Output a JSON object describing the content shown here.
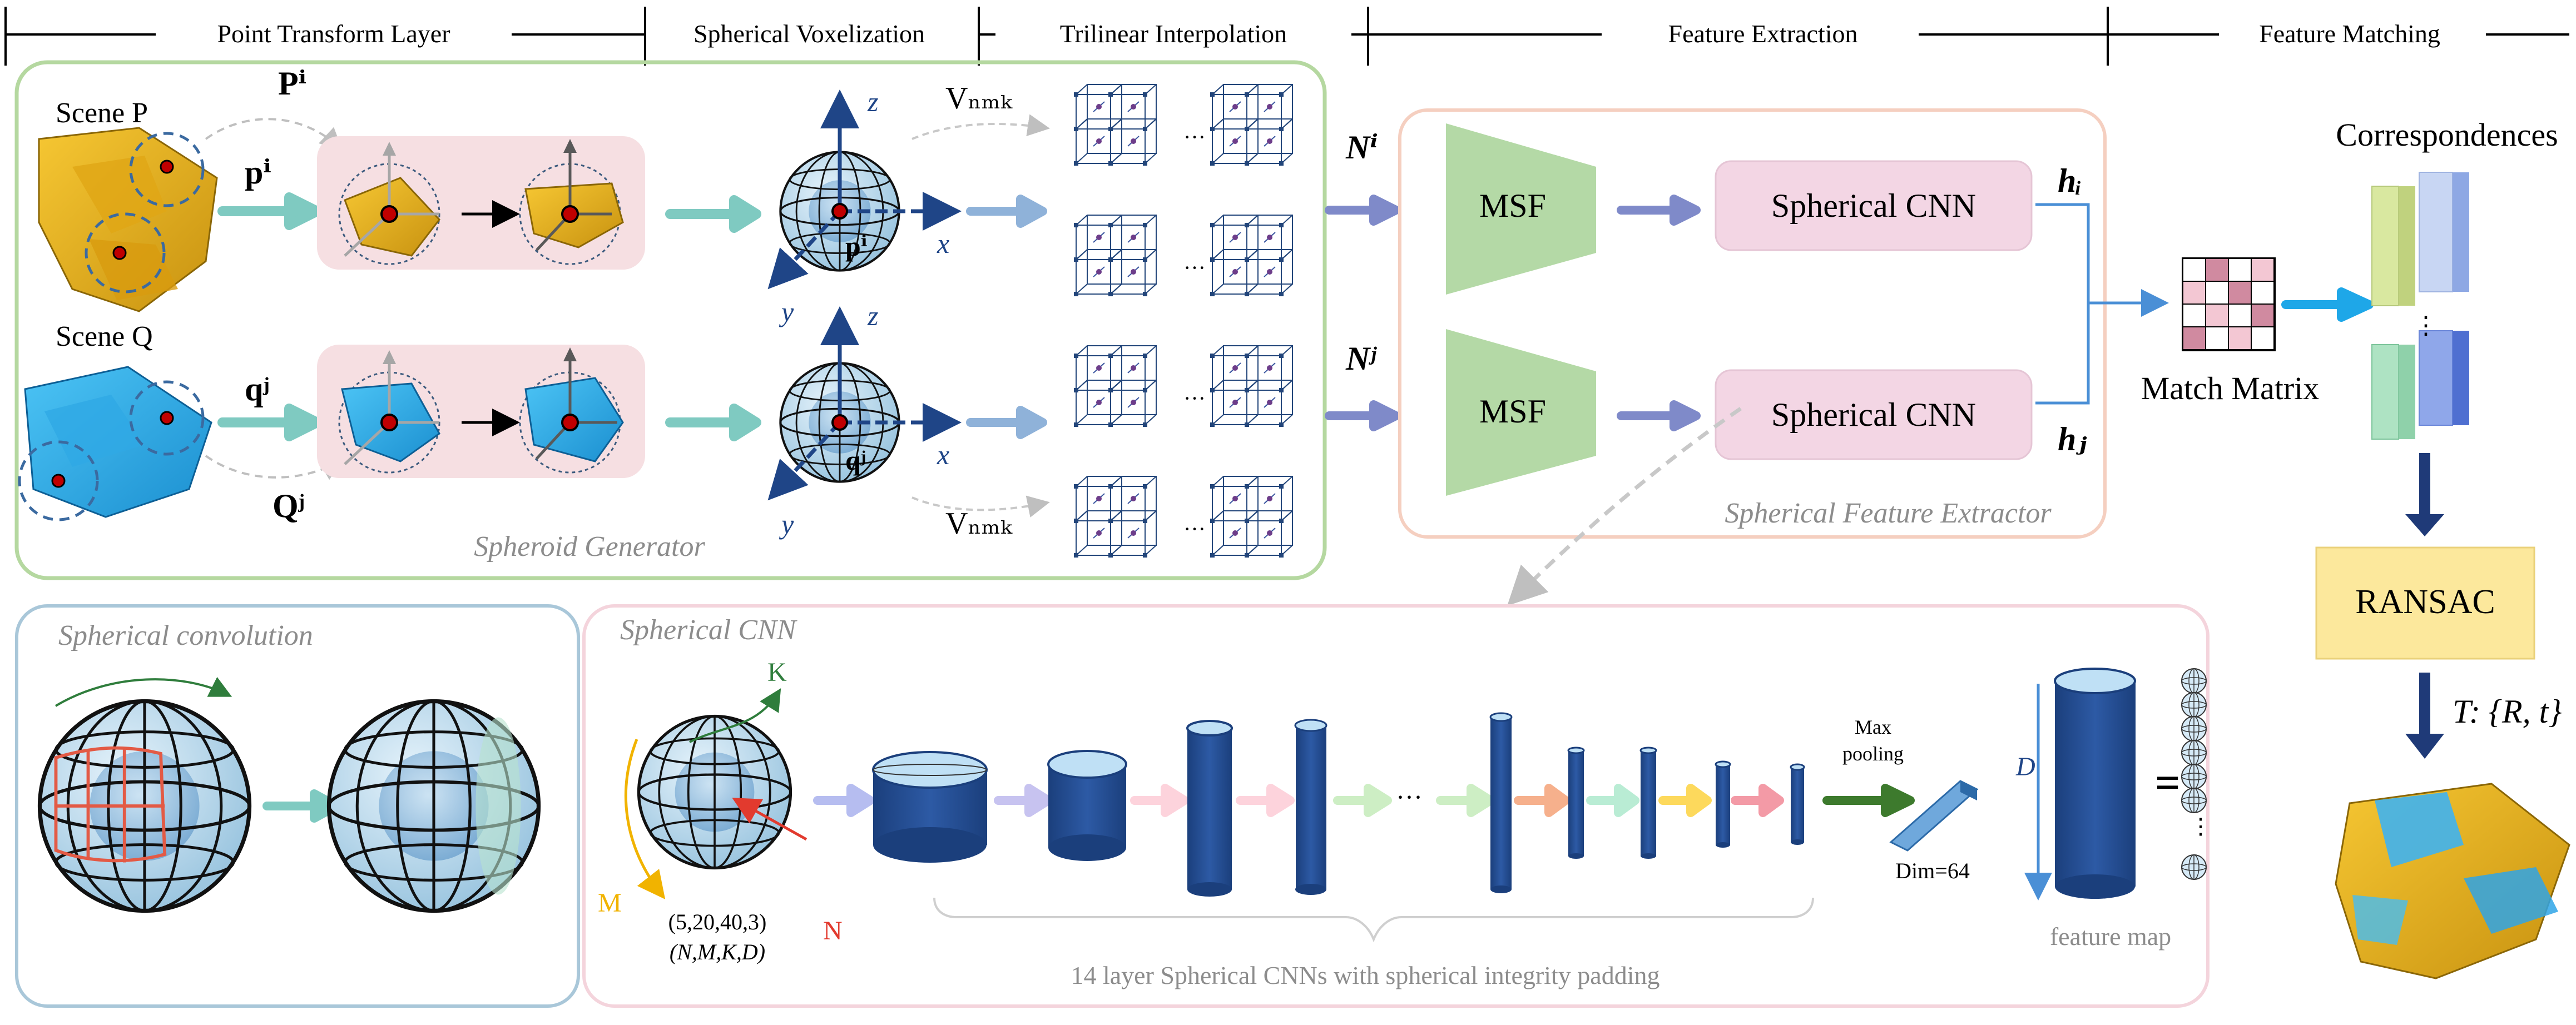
{
  "header": {
    "sections": [
      {
        "label": "Point Transform Layer"
      },
      {
        "label": "Spherical Voxelization"
      },
      {
        "label": "Trilinear Interpolation"
      },
      {
        "label": "Feature Extraction"
      },
      {
        "label": "Feature Matching"
      }
    ]
  },
  "generator": {
    "caption": "Spheroid Generator",
    "scene_p": "Scene P",
    "scene_q": "Scene Q",
    "p_sup_i": "Pⁱ",
    "pi": "pⁱ",
    "q_sup_j": "Qʲ",
    "qj": "qʲ",
    "axis_z": "z",
    "axis_x": "x",
    "axis_y": "y",
    "center_p": "pⁱ",
    "center_q": "qʲ",
    "vnmk_top": "Vₙₘₖ",
    "vnmk_bottom": "Vₙₘₖ"
  },
  "extractor": {
    "caption": "Spherical Feature Extractor",
    "ni": "Nⁱ",
    "nj": "Nʲ",
    "msf_label": "MSF",
    "cnn_label": "Spherical CNN",
    "hi": "hᵢ",
    "hj": "hⱼ"
  },
  "matching": {
    "correspondences": "Correspondences",
    "match_matrix": "Match Matrix",
    "ransac": "RANSAC",
    "transform": "T: {R, t}"
  },
  "conv_panel": {
    "title": "Spherical convolution"
  },
  "cnn_panel": {
    "title": "Spherical CNN",
    "k": "K",
    "m": "M",
    "n": "N",
    "dims": "(5,20,40,3)",
    "dims_names": "(N,M,K,D)",
    "ellipsis": "···",
    "max_pooling_1": "Max",
    "max_pooling_2": "pooling",
    "dim64": "Dim=64",
    "d_label": "D",
    "equals": "=",
    "feature_map": "feature map",
    "layer_caption": "14 layer Spherical CNNs with spherical integrity padding"
  },
  "colors": {
    "green_border": "#b5d8a0",
    "pink_fill": "#f6dfe2",
    "blue_border": "#a9c7d9",
    "msf": "#b4d9a6",
    "cnn_box": "#f3d6e4",
    "ransac": "#fce89c",
    "dark_blue": "#1f4587",
    "teal_arrow": "#7fcac1",
    "purple_arrow": "#7f8ac9"
  }
}
